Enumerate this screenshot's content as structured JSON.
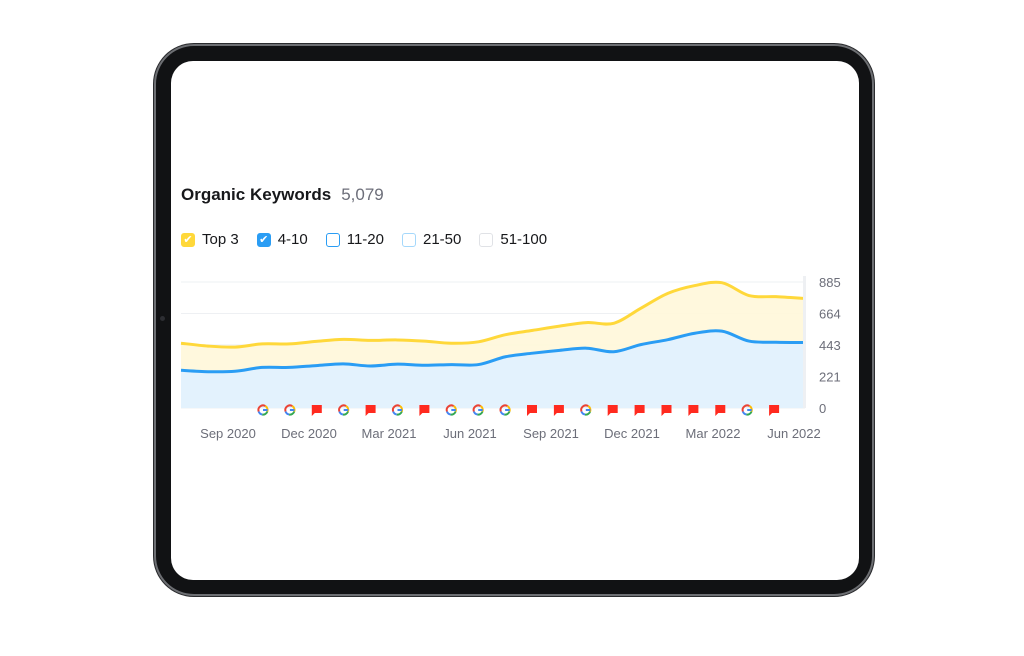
{
  "widget": {
    "title": "Organic Keywords",
    "count": "5,079"
  },
  "legend": [
    {
      "label": "Top 3",
      "checked": true,
      "color": "#ffd83a",
      "border": "#ffd83a"
    },
    {
      "label": "4-10",
      "checked": true,
      "color": "#2a9df4",
      "border": "#2a9df4"
    },
    {
      "label": "11-20",
      "checked": false,
      "color": "#ffffff",
      "border": "#2a9df4"
    },
    {
      "label": "21-50",
      "checked": false,
      "color": "#ffffff",
      "border": "#a5d8fb"
    },
    {
      "label": "51-100",
      "checked": false,
      "color": "#ffffff",
      "border": "#e0e2e6"
    }
  ],
  "chart_data": {
    "type": "area",
    "x": [
      "2020-07",
      "2020-08",
      "2020-09",
      "2020-10",
      "2020-11",
      "2020-12",
      "2021-01",
      "2021-02",
      "2021-03",
      "2021-04",
      "2021-05",
      "2021-06",
      "2021-07",
      "2021-08",
      "2021-09",
      "2021-10",
      "2021-11",
      "2021-12",
      "2022-01",
      "2022-02",
      "2022-03",
      "2022-04",
      "2022-05",
      "2022-06"
    ],
    "x_ticks": [
      "Sep 2020",
      "Dec 2020",
      "Mar 2021",
      "Jun 2021",
      "Sep 2021",
      "Dec 2021",
      "Mar 2022",
      "Jun 2022"
    ],
    "y_ticks": [
      "885",
      "664",
      "443",
      "221",
      "0"
    ],
    "ylim": [
      0,
      885
    ],
    "stacked": true,
    "series": [
      {
        "name": "4-10",
        "color": "#2a9df4",
        "values": [
          265,
          255,
          258,
          285,
          285,
          298,
          310,
          295,
          308,
          300,
          305,
          305,
          360,
          385,
          405,
          420,
          395,
          445,
          480,
          525,
          540,
          470,
          462,
          460
        ]
      },
      {
        "name": "Top 3",
        "color": "#ffd83a",
        "values": [
          190,
          180,
          170,
          165,
          165,
          170,
          172,
          180,
          170,
          170,
          150,
          160,
          155,
          160,
          170,
          180,
          200,
          255,
          325,
          335,
          340,
          320,
          320,
          310
        ]
      }
    ],
    "markers": [
      "google",
      "google",
      "flag",
      "google",
      "flag",
      "google",
      "flag",
      "google",
      "google",
      "google",
      "flag",
      "flag",
      "google",
      "flag",
      "flag",
      "flag",
      "flag",
      "flag",
      "google",
      "flag"
    ],
    "grid": true
  }
}
